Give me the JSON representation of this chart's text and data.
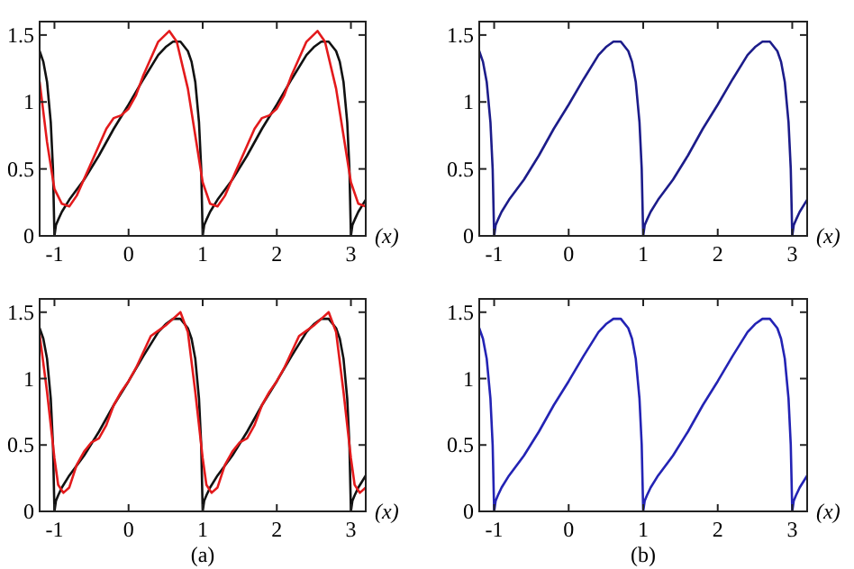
{
  "chart_data": [
    {
      "type": "line",
      "xlabel": "(x)",
      "xlim": [
        -1.2,
        3.2
      ],
      "ylim": [
        0,
        1.6
      ],
      "xticks": [
        -1,
        0,
        1,
        2,
        3
      ],
      "yticks": [
        0,
        0.5,
        1,
        1.5
      ],
      "grid": false,
      "marker": "none",
      "line_style": "solid",
      "series": [
        {
          "color": "#111111",
          "x": [
            -1.2,
            -1.15,
            -1.1,
            -1.05,
            -1.02,
            -1.0,
            -0.98,
            -0.95,
            -0.9,
            -0.8,
            -0.6,
            -0.4,
            -0.2,
            0,
            0.2,
            0.4,
            0.5,
            0.6,
            0.7,
            0.8,
            0.85,
            0.9,
            0.95,
            0.98,
            1.0,
            1.02,
            1.05,
            1.1,
            1.2,
            1.4,
            1.6,
            1.8,
            2.0,
            2.2,
            2.4,
            2.5,
            2.6,
            2.7,
            2.8,
            2.85,
            2.9,
            2.95,
            2.98,
            3.0,
            3.02,
            3.05,
            3.1,
            3.2
          ],
          "values": [
            1.38,
            1.3,
            1.15,
            0.85,
            0.5,
            0,
            0.08,
            0.12,
            0.18,
            0.27,
            0.42,
            0.6,
            0.8,
            0.98,
            1.17,
            1.35,
            1.41,
            1.45,
            1.45,
            1.38,
            1.3,
            1.15,
            0.85,
            0.5,
            0,
            0.08,
            0.12,
            0.18,
            0.27,
            0.42,
            0.6,
            0.8,
            0.98,
            1.17,
            1.35,
            1.41,
            1.45,
            1.45,
            1.38,
            1.3,
            1.15,
            0.85,
            0.5,
            0,
            0.08,
            0.12,
            0.18,
            0.27
          ]
        },
        {
          "color": "#e31a1c",
          "x": [
            -1.2,
            -1.1,
            -1.0,
            -0.9,
            -0.8,
            -0.7,
            -0.5,
            -0.3,
            -0.2,
            -0.1,
            0,
            0.1,
            0.2,
            0.4,
            0.55,
            0.65,
            0.8,
            0.9,
            1.0,
            1.1,
            1.2,
            1.3,
            1.5,
            1.7,
            1.8,
            1.9,
            2.0,
            2.1,
            2.2,
            2.4,
            2.55,
            2.65,
            2.8,
            2.9,
            3.0,
            3.1,
            3.2
          ],
          "values": [
            1.15,
            0.7,
            0.35,
            0.24,
            0.22,
            0.3,
            0.55,
            0.8,
            0.88,
            0.9,
            0.95,
            1.05,
            1.2,
            1.45,
            1.53,
            1.45,
            1.1,
            0.75,
            0.4,
            0.24,
            0.22,
            0.3,
            0.55,
            0.8,
            0.88,
            0.9,
            0.95,
            1.05,
            1.2,
            1.45,
            1.53,
            1.45,
            1.1,
            0.75,
            0.4,
            0.24,
            0.22
          ]
        }
      ]
    },
    {
      "type": "line",
      "xlabel": "(x)",
      "xlim": [
        -1.2,
        3.2
      ],
      "ylim": [
        0,
        1.6
      ],
      "xticks": [
        -1,
        0,
        1,
        2,
        3
      ],
      "yticks": [
        0,
        0.5,
        1,
        1.5
      ],
      "grid": false,
      "marker": "none",
      "line_style": "solid",
      "series": [
        {
          "color": "#1c1c8a",
          "x": [
            -1.2,
            -1.15,
            -1.1,
            -1.05,
            -1.02,
            -1.0,
            -0.98,
            -0.95,
            -0.9,
            -0.8,
            -0.6,
            -0.4,
            -0.2,
            0,
            0.2,
            0.4,
            0.5,
            0.6,
            0.7,
            0.8,
            0.85,
            0.9,
            0.95,
            0.98,
            1.0,
            1.02,
            1.05,
            1.1,
            1.2,
            1.4,
            1.6,
            1.8,
            2.0,
            2.2,
            2.4,
            2.5,
            2.6,
            2.7,
            2.8,
            2.85,
            2.9,
            2.95,
            2.98,
            3.0,
            3.02,
            3.05,
            3.1,
            3.2
          ],
          "values": [
            1.38,
            1.3,
            1.15,
            0.85,
            0.5,
            0,
            0.08,
            0.12,
            0.18,
            0.27,
            0.42,
            0.6,
            0.8,
            0.98,
            1.17,
            1.35,
            1.41,
            1.45,
            1.45,
            1.38,
            1.3,
            1.15,
            0.85,
            0.5,
            0,
            0.08,
            0.12,
            0.18,
            0.27,
            0.42,
            0.6,
            0.8,
            0.98,
            1.17,
            1.35,
            1.41,
            1.45,
            1.45,
            1.38,
            1.3,
            1.15,
            0.85,
            0.5,
            0,
            0.08,
            0.12,
            0.18,
            0.27
          ]
        }
      ]
    },
    {
      "type": "line",
      "xlabel": "(x)",
      "xlim": [
        -1.2,
        3.2
      ],
      "ylim": [
        0,
        1.6
      ],
      "xticks": [
        -1,
        0,
        1,
        2,
        3
      ],
      "yticks": [
        0,
        0.5,
        1,
        1.5
      ],
      "grid": false,
      "marker": "none",
      "line_style": "solid",
      "annotations": [
        "(a)"
      ],
      "series": [
        {
          "color": "#111111",
          "x": [
            -1.2,
            -1.15,
            -1.1,
            -1.05,
            -1.02,
            -1.0,
            -0.98,
            -0.95,
            -0.9,
            -0.8,
            -0.6,
            -0.4,
            -0.2,
            0,
            0.2,
            0.4,
            0.5,
            0.6,
            0.7,
            0.8,
            0.85,
            0.9,
            0.95,
            0.98,
            1.0,
            1.02,
            1.05,
            1.1,
            1.2,
            1.4,
            1.6,
            1.8,
            2.0,
            2.2,
            2.4,
            2.5,
            2.6,
            2.7,
            2.8,
            2.85,
            2.9,
            2.95,
            2.98,
            3.0,
            3.02,
            3.05,
            3.1,
            3.2
          ],
          "values": [
            1.38,
            1.3,
            1.15,
            0.85,
            0.5,
            0,
            0.08,
            0.12,
            0.18,
            0.27,
            0.42,
            0.6,
            0.8,
            0.98,
            1.17,
            1.35,
            1.41,
            1.45,
            1.45,
            1.38,
            1.3,
            1.15,
            0.85,
            0.5,
            0,
            0.08,
            0.12,
            0.18,
            0.27,
            0.42,
            0.6,
            0.8,
            0.98,
            1.17,
            1.35,
            1.41,
            1.45,
            1.45,
            1.38,
            1.3,
            1.15,
            0.85,
            0.5,
            0,
            0.08,
            0.12,
            0.18,
            0.27
          ]
        },
        {
          "color": "#e31a1c",
          "x": [
            -1.2,
            -1.1,
            -1.0,
            -0.95,
            -0.88,
            -0.8,
            -0.7,
            -0.6,
            -0.5,
            -0.4,
            -0.3,
            -0.2,
            -0.1,
            0,
            0.1,
            0.2,
            0.3,
            0.4,
            0.5,
            0.6,
            0.7,
            0.8,
            0.9,
            1.0,
            1.05,
            1.12,
            1.2,
            1.3,
            1.4,
            1.5,
            1.6,
            1.7,
            1.8,
            1.9,
            2.0,
            2.1,
            2.2,
            2.3,
            2.4,
            2.5,
            2.6,
            2.7,
            2.8,
            2.9,
            3.0,
            3.05,
            3.12,
            3.2
          ],
          "values": [
            1.33,
            0.9,
            0.4,
            0.2,
            0.14,
            0.18,
            0.35,
            0.45,
            0.52,
            0.55,
            0.65,
            0.8,
            0.9,
            0.98,
            1.08,
            1.2,
            1.32,
            1.36,
            1.4,
            1.45,
            1.5,
            1.35,
            0.9,
            0.4,
            0.2,
            0.14,
            0.18,
            0.35,
            0.45,
            0.52,
            0.55,
            0.65,
            0.8,
            0.9,
            0.98,
            1.08,
            1.2,
            1.32,
            1.36,
            1.4,
            1.45,
            1.5,
            1.35,
            0.9,
            0.4,
            0.2,
            0.14,
            0.18
          ]
        }
      ]
    },
    {
      "type": "line",
      "xlabel": "(x)",
      "xlim": [
        -1.2,
        3.2
      ],
      "ylim": [
        0,
        1.6
      ],
      "xticks": [
        -1,
        0,
        1,
        2,
        3
      ],
      "yticks": [
        0,
        0.5,
        1,
        1.5
      ],
      "grid": false,
      "marker": "none",
      "line_style": "solid",
      "annotations": [
        "(b)"
      ],
      "series": [
        {
          "color": "#2323b4",
          "x": [
            -1.2,
            -1.15,
            -1.1,
            -1.05,
            -1.02,
            -1.0,
            -0.98,
            -0.95,
            -0.9,
            -0.8,
            -0.6,
            -0.4,
            -0.2,
            0,
            0.2,
            0.4,
            0.5,
            0.6,
            0.7,
            0.8,
            0.85,
            0.9,
            0.95,
            0.98,
            1.0,
            1.02,
            1.05,
            1.1,
            1.2,
            1.4,
            1.6,
            1.8,
            2.0,
            2.2,
            2.4,
            2.5,
            2.6,
            2.7,
            2.8,
            2.85,
            2.9,
            2.95,
            2.98,
            3.0,
            3.02,
            3.05,
            3.1,
            3.2
          ],
          "values": [
            1.38,
            1.3,
            1.15,
            0.85,
            0.5,
            0,
            0.08,
            0.12,
            0.18,
            0.27,
            0.42,
            0.6,
            0.8,
            0.98,
            1.17,
            1.35,
            1.41,
            1.45,
            1.45,
            1.38,
            1.3,
            1.15,
            0.85,
            0.5,
            0,
            0.08,
            0.12,
            0.18,
            0.27,
            0.42,
            0.6,
            0.8,
            0.98,
            1.17,
            1.35,
            1.41,
            1.45,
            1.45,
            1.38,
            1.3,
            1.15,
            0.85,
            0.5,
            0,
            0.08,
            0.12,
            0.18,
            0.27
          ]
        }
      ]
    }
  ]
}
